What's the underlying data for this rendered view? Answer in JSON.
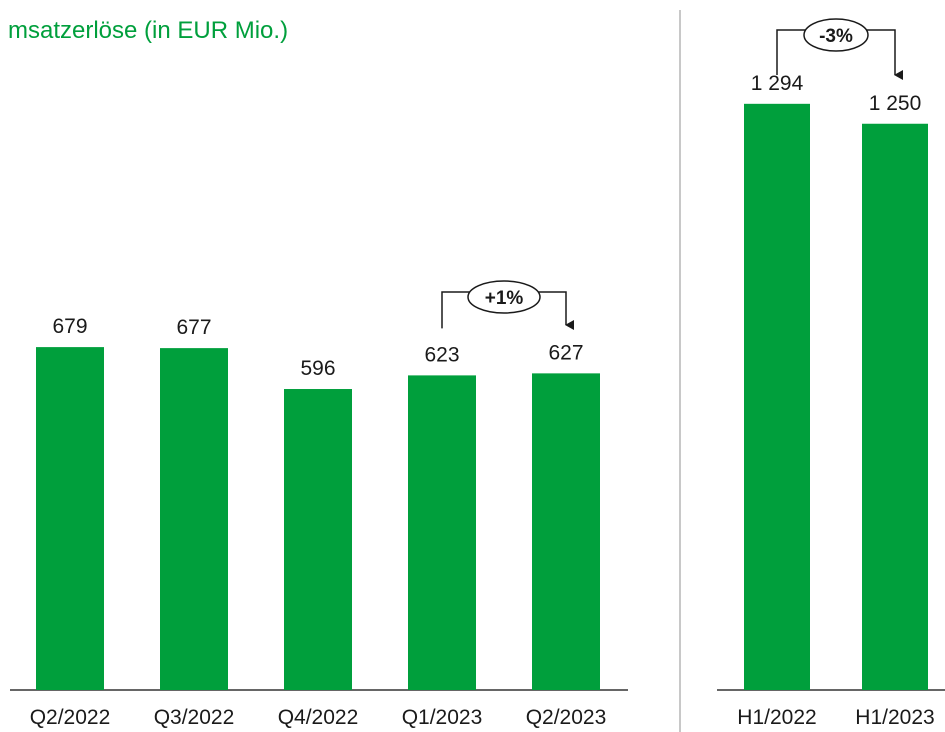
{
  "chart_data": [
    {
      "type": "bar",
      "title": "msatzerlöse (in EUR Mio.)",
      "categories": [
        "Q2/2022",
        "Q3/2022",
        "Q4/2022",
        "Q1/2023",
        "Q2/2023"
      ],
      "values": [
        679,
        677,
        596,
        623,
        627
      ],
      "color": "#009f3c",
      "annotation": "+1%"
    },
    {
      "type": "bar",
      "categories": [
        "H1/2022",
        "H1/2023"
      ],
      "values": [
        1294,
        1250
      ],
      "value_labels": [
        "1 294",
        "1 250"
      ],
      "color": "#009f3c",
      "annotation": "-3%"
    }
  ]
}
